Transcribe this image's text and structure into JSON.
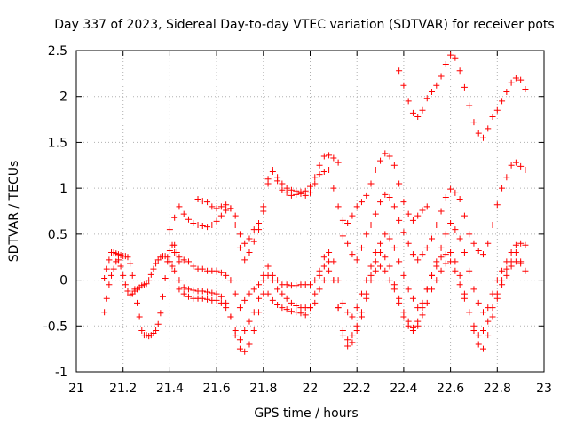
{
  "chart_data": {
    "type": "scatter",
    "title": "Day 337 of 2023, Sidereal Day-to-day VTEC variation (SDTVAR) for receiver pots",
    "xlabel": "GPS time / hours",
    "ylabel": "SDTVAR / TECUs",
    "xlim": [
      21,
      23
    ],
    "ylim": [
      -1,
      2.5
    ],
    "xticks": [
      21,
      21.2,
      21.4,
      21.6,
      21.8,
      22,
      22.2,
      22.4,
      22.6,
      22.8,
      23
    ],
    "xtick_labels": [
      "21",
      "21.2",
      "21.4",
      "21.6",
      "21.8",
      "22",
      "22.2",
      "22.4",
      "22.6",
      "22.8",
      "23"
    ],
    "yticks": [
      -1,
      -0.5,
      0,
      0.5,
      1,
      1.5,
      2,
      2.5
    ],
    "ytick_labels": [
      "-1",
      "-0.5",
      "0",
      "0.5",
      "1",
      "1.5",
      "2",
      "2.5"
    ],
    "grid": true,
    "marker": "+",
    "color": "#ff0000",
    "series": [
      {
        "name": "s1",
        "x": [
          21.12,
          21.13,
          21.14,
          21.15,
          21.16,
          21.17,
          21.18,
          21.19,
          21.2,
          21.21,
          21.22,
          21.23,
          21.24,
          21.25,
          21.26,
          21.27,
          21.28,
          21.29,
          21.3,
          21.31,
          21.32,
          21.33,
          21.34,
          21.35,
          21.36,
          21.37,
          21.38,
          21.39,
          21.4,
          21.41,
          21.42,
          21.43,
          21.44
        ],
        "y": [
          0.02,
          0.12,
          0.22,
          0.3,
          0.3,
          0.29,
          0.28,
          0.27,
          0.26,
          0.26,
          0.25,
          0.18,
          0.05,
          -0.1,
          -0.25,
          -0.4,
          -0.55,
          -0.6,
          -0.6,
          -0.61,
          -0.6,
          -0.58,
          -0.55,
          -0.48,
          -0.36,
          -0.18,
          0.02,
          0.2,
          0.32,
          0.38,
          0.38,
          0.3,
          0.2
        ]
      },
      {
        "name": "s2",
        "x": [
          21.12,
          21.13,
          21.14,
          21.15,
          21.16,
          21.17,
          21.18,
          21.19,
          21.2,
          21.21,
          21.22,
          21.23,
          21.24,
          21.25,
          21.26,
          21.27,
          21.28,
          21.29,
          21.3,
          21.31,
          21.32,
          21.33,
          21.34,
          21.35,
          21.36,
          21.37,
          21.38,
          21.39,
          21.4,
          21.41
        ],
        "y": [
          -0.35,
          -0.2,
          -0.05,
          0.05,
          0.12,
          0.2,
          0.22,
          0.15,
          0.05,
          -0.05,
          -0.12,
          -0.16,
          -0.15,
          -0.12,
          -0.1,
          -0.08,
          -0.06,
          -0.05,
          -0.04,
          0.0,
          0.06,
          0.12,
          0.18,
          0.22,
          0.25,
          0.26,
          0.26,
          0.25,
          0.2,
          0.15
        ]
      },
      {
        "name": "s3",
        "x": [
          21.4,
          21.42,
          21.44,
          21.46,
          21.48,
          21.5,
          21.52,
          21.54,
          21.56,
          21.58,
          21.6,
          21.62,
          21.64,
          21.66,
          21.68,
          21.7,
          21.72,
          21.74,
          21.76,
          21.78,
          21.8,
          21.82,
          21.84,
          21.86,
          21.88,
          21.9,
          21.92,
          21.94,
          21.96,
          21.98,
          22.0,
          22.02,
          22.04,
          22.06,
          22.08,
          22.1,
          22.12
        ],
        "y": [
          0.55,
          0.68,
          0.8,
          0.72,
          0.66,
          0.62,
          0.6,
          0.59,
          0.58,
          0.6,
          0.64,
          0.7,
          0.76,
          0.78,
          0.7,
          0.5,
          0.4,
          0.45,
          0.55,
          0.62,
          0.75,
          1.05,
          1.2,
          1.12,
          1.05,
          1.0,
          0.98,
          0.97,
          0.96,
          0.97,
          1.02,
          1.12,
          1.25,
          1.35,
          1.36,
          1.33,
          1.28
        ]
      },
      {
        "name": "s4",
        "x": [
          21.52,
          21.54,
          21.56,
          21.58,
          21.6,
          21.62,
          21.64,
          21.66,
          21.68,
          21.7,
          21.72,
          21.74,
          21.76,
          21.78,
          21.8,
          21.82,
          21.84,
          21.86,
          21.88,
          21.9,
          21.92,
          21.94,
          21.96,
          21.98,
          22.0,
          22.02,
          22.04,
          22.06,
          22.08,
          22.1,
          22.12,
          22.14,
          22.16,
          22.18,
          22.2,
          22.22,
          22.24,
          22.26,
          22.28,
          22.3,
          22.32,
          22.34,
          22.36,
          22.38,
          22.4,
          22.42,
          22.44,
          22.46,
          22.48,
          22.5
        ],
        "y": [
          0.88,
          0.86,
          0.85,
          0.8,
          0.78,
          0.8,
          0.82,
          0.78,
          0.6,
          0.35,
          0.22,
          0.3,
          0.42,
          0.55,
          0.8,
          1.1,
          1.18,
          1.08,
          0.98,
          0.95,
          0.92,
          0.93,
          0.94,
          0.92,
          0.95,
          1.05,
          1.15,
          1.18,
          1.2,
          1.0,
          0.8,
          0.65,
          0.62,
          0.7,
          0.8,
          0.85,
          0.92,
          1.05,
          1.2,
          1.3,
          1.38,
          1.35,
          1.25,
          1.05,
          0.85,
          0.72,
          0.65,
          0.7,
          0.76,
          0.8
        ]
      },
      {
        "name": "s5",
        "x": [
          22.14,
          22.16,
          22.18,
          22.2,
          22.22,
          22.24,
          22.26,
          22.28,
          22.3,
          22.32,
          22.34,
          22.36,
          22.38,
          22.4,
          22.42,
          22.44,
          22.46,
          22.48,
          22.5,
          22.52,
          22.54,
          22.56,
          22.58,
          22.6,
          22.62,
          22.64,
          22.66,
          22.68,
          22.7,
          22.72,
          22.74,
          22.76,
          22.78,
          22.8,
          22.82,
          22.84,
          22.86,
          22.88,
          22.9,
          22.92
        ],
        "y": [
          0.48,
          0.4,
          0.28,
          0.22,
          0.35,
          0.5,
          0.6,
          0.72,
          0.85,
          0.93,
          0.9,
          0.8,
          0.65,
          0.52,
          0.4,
          0.28,
          0.22,
          0.28,
          0.35,
          0.45,
          0.6,
          0.75,
          0.9,
          0.99,
          0.95,
          0.88,
          0.7,
          0.5,
          0.4,
          0.32,
          0.28,
          0.4,
          0.6,
          0.82,
          1.0,
          1.12,
          1.25,
          1.28,
          1.24,
          1.2
        ]
      },
      {
        "name": "s6",
        "x": [
          22.38,
          22.4,
          22.42,
          22.44,
          22.46,
          22.48,
          22.5,
          22.52,
          22.54,
          22.56,
          22.58,
          22.6,
          22.62,
          22.64,
          22.66,
          22.68,
          22.7,
          22.72,
          22.74,
          22.76,
          22.78,
          22.8,
          22.82,
          22.84,
          22.86,
          22.88,
          22.9,
          22.92
        ],
        "y": [
          2.28,
          2.12,
          1.95,
          1.82,
          1.78,
          1.85,
          1.98,
          2.05,
          2.12,
          2.22,
          2.35,
          2.45,
          2.42,
          2.28,
          2.1,
          1.9,
          1.72,
          1.6,
          1.55,
          1.65,
          1.78,
          1.85,
          1.95,
          2.05,
          2.15,
          2.2,
          2.18,
          2.08
        ]
      },
      {
        "name": "s7",
        "x": [
          21.42,
          21.44,
          21.46,
          21.48,
          21.5,
          21.52,
          21.54,
          21.56,
          21.58,
          21.6,
          21.62,
          21.64,
          21.66,
          21.68,
          21.7,
          21.72,
          21.74,
          21.76,
          21.78,
          21.8,
          21.82,
          21.84,
          21.86,
          21.88,
          21.9,
          21.92,
          21.94,
          21.96,
          21.98,
          22.0,
          22.02,
          22.04,
          22.06,
          22.08,
          22.1,
          22.12,
          22.14,
          22.16,
          22.18,
          22.2,
          22.22,
          22.24,
          22.26,
          22.28,
          22.3,
          22.32,
          22.34,
          22.36,
          22.38,
          22.4,
          22.42,
          22.44,
          22.46,
          22.48,
          22.5,
          22.52,
          22.54,
          22.56,
          22.58,
          22.6,
          22.62,
          22.64,
          22.66,
          22.68,
          22.7,
          22.72,
          22.74,
          22.76,
          22.78,
          22.8,
          22.82,
          22.84,
          22.86,
          22.88,
          22.9,
          22.92
        ],
        "y": [
          0.3,
          0.25,
          0.22,
          0.2,
          0.15,
          0.12,
          0.12,
          0.1,
          0.1,
          0.1,
          0.08,
          0.05,
          0.0,
          -0.15,
          -0.3,
          -0.22,
          -0.15,
          -0.1,
          -0.05,
          0.05,
          0.15,
          0.05,
          0.0,
          -0.05,
          -0.05,
          -0.06,
          -0.06,
          -0.05,
          -0.05,
          -0.05,
          0.0,
          0.1,
          0.25,
          0.3,
          0.2,
          0.0,
          -0.25,
          -0.35,
          -0.4,
          -0.3,
          -0.15,
          0.0,
          0.15,
          0.3,
          0.4,
          0.5,
          0.45,
          0.35,
          0.2,
          0.05,
          -0.1,
          -0.2,
          -0.3,
          -0.25,
          -0.1,
          0.05,
          0.2,
          0.35,
          0.5,
          0.62,
          0.55,
          0.45,
          0.3,
          0.1,
          -0.1,
          -0.25,
          -0.35,
          -0.3,
          -0.15,
          0.0,
          0.1,
          0.2,
          0.3,
          0.38,
          0.4,
          0.38
        ]
      },
      {
        "name": "s8",
        "x": [
          21.4,
          21.42,
          21.44,
          21.46,
          21.48,
          21.5,
          21.52,
          21.54,
          21.56,
          21.58,
          21.6,
          21.62,
          21.64,
          21.66,
          21.68,
          21.7,
          21.72,
          21.74,
          21.76,
          21.78,
          21.8,
          21.82,
          21.84,
          21.86,
          21.88,
          21.9,
          21.92,
          21.94,
          21.96,
          21.98,
          22.0,
          22.02,
          22.04,
          22.06,
          22.08,
          22.1,
          22.12,
          22.14,
          22.16,
          22.18,
          22.2,
          22.22,
          22.24,
          22.26,
          22.28,
          22.3,
          22.32,
          22.34,
          22.36,
          22.38,
          22.4,
          22.42,
          22.44,
          22.46,
          22.48,
          22.5,
          22.52,
          22.54,
          22.56,
          22.58,
          22.6,
          22.62,
          22.64,
          22.66,
          22.68,
          22.7,
          22.72,
          22.74,
          22.76,
          22.78,
          22.8,
          22.82,
          22.84,
          22.86,
          22.88,
          22.9,
          22.92
        ],
        "y": [
          0.2,
          0.1,
          0.0,
          -0.08,
          -0.1,
          -0.11,
          -0.12,
          -0.12,
          -0.13,
          -0.14,
          -0.15,
          -0.18,
          -0.25,
          -0.4,
          -0.6,
          -0.65,
          -0.55,
          -0.45,
          -0.35,
          -0.2,
          0.0,
          -0.15,
          -0.22,
          -0.27,
          -0.3,
          -0.32,
          -0.34,
          -0.35,
          -0.36,
          -0.38,
          -0.3,
          -0.15,
          0.05,
          0.15,
          0.2,
          0.0,
          -0.3,
          -0.55,
          -0.65,
          -0.6,
          -0.5,
          -0.35,
          -0.15,
          0.05,
          0.2,
          0.3,
          0.25,
          0.15,
          -0.05,
          -0.2,
          -0.35,
          -0.45,
          -0.52,
          -0.45,
          -0.3,
          -0.1,
          0.05,
          0.15,
          0.25,
          0.28,
          0.3,
          0.2,
          0.05,
          -0.15,
          -0.35,
          -0.5,
          -0.6,
          -0.55,
          -0.45,
          -0.3,
          -0.15,
          0.0,
          0.12,
          0.2,
          0.3,
          0.2,
          0.1
        ]
      },
      {
        "name": "s9",
        "x": [
          21.44,
          21.46,
          21.48,
          21.5,
          21.52,
          21.54,
          21.56,
          21.58,
          21.6,
          21.62,
          21.64,
          21.66,
          21.68,
          21.7,
          21.72,
          21.74,
          21.76,
          21.78,
          21.8,
          21.82,
          21.84,
          21.86,
          21.88,
          21.9,
          21.92,
          21.94,
          21.96,
          21.98,
          22.0,
          22.02,
          22.04,
          22.06,
          22.08,
          22.1,
          22.12,
          22.14,
          22.16,
          22.18,
          22.2,
          22.22,
          22.24,
          22.26,
          22.28,
          22.3,
          22.32,
          22.34,
          22.36,
          22.38,
          22.4,
          22.42,
          22.44,
          22.46,
          22.48,
          22.5,
          22.52,
          22.54,
          22.56,
          22.58,
          22.6,
          22.62,
          22.64,
          22.66,
          22.68,
          22.7,
          22.72,
          22.74,
          22.76,
          22.78,
          22.8,
          22.82,
          22.84,
          22.86,
          22.88,
          22.9
        ],
        "y": [
          -0.1,
          -0.15,
          -0.18,
          -0.2,
          -0.2,
          -0.2,
          -0.21,
          -0.22,
          -0.22,
          -0.25,
          -0.3,
          -0.4,
          -0.55,
          -0.75,
          -0.78,
          -0.7,
          -0.55,
          -0.35,
          -0.15,
          0.05,
          0.0,
          -0.1,
          -0.15,
          -0.2,
          -0.25,
          -0.28,
          -0.3,
          -0.3,
          -0.3,
          -0.25,
          -0.1,
          0.0,
          0.1,
          0.0,
          -0.3,
          -0.6,
          -0.72,
          -0.68,
          -0.55,
          -0.4,
          -0.2,
          0.0,
          0.1,
          0.15,
          0.1,
          0.0,
          -0.1,
          -0.25,
          -0.4,
          -0.5,
          -0.55,
          -0.5,
          -0.38,
          -0.25,
          -0.1,
          0.0,
          0.1,
          0.18,
          0.2,
          0.1,
          -0.05,
          -0.2,
          -0.35,
          -0.55,
          -0.7,
          -0.75,
          -0.6,
          -0.4,
          -0.2,
          -0.05,
          0.05,
          0.15,
          0.2,
          0.18
        ]
      }
    ]
  }
}
